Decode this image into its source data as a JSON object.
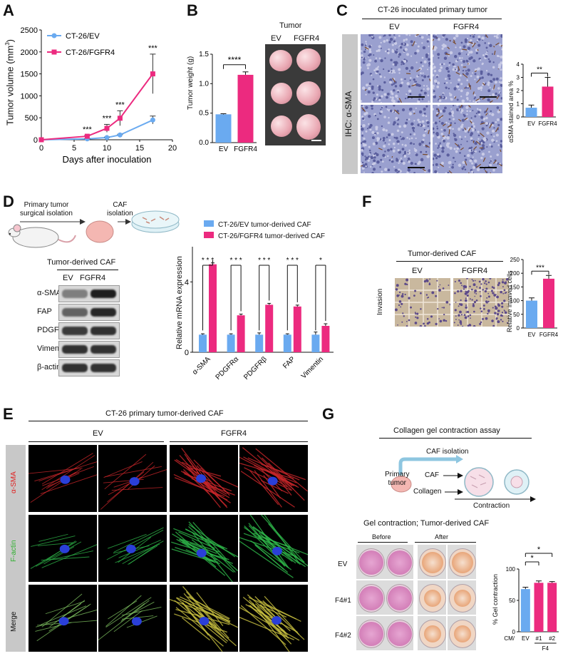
{
  "panels": {
    "A": {
      "label": "A",
      "ylabel": "Tumor volume (mm",
      "ylabel_sup": "3",
      "ylabel_close": ")",
      "xlabel": "Days after inoculation",
      "legend": [
        "CT-26/EV",
        "CT-26/FGFR4"
      ],
      "sig": [
        "***",
        "***",
        "***",
        "***"
      ]
    },
    "B": {
      "label": "B",
      "ylabel": "Tumor weight (g)",
      "categories": [
        "EV",
        "FGFR4"
      ],
      "sig": "****",
      "photo_title": "Tumor",
      "photo_cols": [
        "EV",
        "FGFR4"
      ]
    },
    "C": {
      "label": "C",
      "title": "CT-26 inoculated primary tumor",
      "cols": [
        "EV",
        "FGFR4"
      ],
      "side_label": "IHC: α-SMA",
      "bar_ylabel": "αSMA stained area %",
      "categories": [
        "EV",
        "FGFR4"
      ],
      "sig": "**"
    },
    "D": {
      "label": "D",
      "scheme_step1": [
        "Primary tumor",
        "surgical isolation"
      ],
      "scheme_step2": [
        "CAF",
        "isolation"
      ],
      "blot_title": "Tumor-derived CAF",
      "blot_cols": [
        "EV",
        "FGFR4"
      ],
      "blot_rows": [
        "α-SMA",
        "FAP",
        "PDGFRα",
        "Vimentin",
        "β-actin"
      ],
      "legend": [
        "CT-26/EV tumor-derived CAF",
        "CT-26/FGFR4 tumor-derived CAF"
      ],
      "bar_ylabel": "Relative mRNA expression",
      "categories": [
        "α-SMA",
        "PDGFRα",
        "PDGFRβ",
        "FAP",
        "Vimentin"
      ],
      "sig": [
        "* * *",
        "* * *",
        "* * *",
        "* * *",
        "*"
      ]
    },
    "E": {
      "label": "E",
      "title": "CT-26 primary tumor-derived CAF",
      "groups": [
        "EV",
        "FGFR4"
      ],
      "rows": [
        "α-SMA",
        "F-actin",
        "Merge"
      ]
    },
    "F": {
      "label": "F",
      "title": "Tumor-derived CAF",
      "cols": [
        "EV",
        "FGFR4"
      ],
      "side_label": "Invasion",
      "bar_ylabel": "Relative invaved cells",
      "categories": [
        "EV",
        "FGFR4"
      ],
      "sig": "***"
    },
    "G": {
      "label": "G",
      "title": "Collagen gel contraction assay",
      "scheme_caf": "CAF isolation",
      "scheme_primary": [
        "Primary",
        "tumor"
      ],
      "scheme_caf2": "CAF",
      "scheme_collagen": "Collagen",
      "scheme_contraction": "Contraction",
      "photo_title": "Gel contraction; Tumor-derived CAF",
      "photo_cols": [
        "Before",
        "After"
      ],
      "photo_rows": [
        "EV",
        "F4#1",
        "F4#2"
      ],
      "bar_ylabel": "% Gel contraction",
      "cm_label": "CM/",
      "categories": [
        "EV",
        "#1",
        "#2"
      ],
      "group_label": "F4",
      "sig": [
        "*",
        "*"
      ]
    }
  },
  "colors": {
    "ev": "#6aaaf0",
    "fgfr4": "#ec2a7f"
  },
  "chart_data": [
    {
      "id": "A",
      "type": "line",
      "xlabel": "Days after inoculation",
      "ylabel": "Tumor volume (mm3)",
      "xlim": [
        0,
        20
      ],
      "ylim": [
        0,
        2500
      ],
      "xticks": [
        0,
        5,
        10,
        15,
        20
      ],
      "yticks": [
        0,
        500,
        1000,
        1500,
        2000,
        2500
      ],
      "series": [
        {
          "name": "CT-26/EV",
          "x": [
            0,
            7,
            10,
            12,
            17
          ],
          "values": [
            0,
            20,
            50,
            110,
            450
          ],
          "err": [
            0,
            5,
            10,
            15,
            90
          ]
        },
        {
          "name": "CT-26/FGFR4",
          "x": [
            0,
            7,
            10,
            12,
            17
          ],
          "values": [
            0,
            80,
            260,
            490,
            1500
          ],
          "err": [
            0,
            20,
            90,
            170,
            450
          ]
        }
      ]
    },
    {
      "id": "B",
      "type": "bar",
      "categories": [
        "EV",
        "FGFR4"
      ],
      "values": [
        0.48,
        1.15
      ],
      "err": [
        0.01,
        0.05
      ],
      "ylim": [
        0,
        1.5
      ],
      "yticks": [
        0.0,
        0.5,
        1.0,
        1.5
      ]
    },
    {
      "id": "C",
      "type": "bar",
      "categories": [
        "EV",
        "FGFR4"
      ],
      "values": [
        0.7,
        2.3
      ],
      "err": [
        0.2,
        0.7
      ],
      "ylim": [
        0,
        4
      ],
      "yticks": [
        0,
        1,
        2,
        3,
        4
      ]
    },
    {
      "id": "D",
      "type": "bar",
      "categories": [
        "α-SMA",
        "PDGFRα",
        "PDGFRβ",
        "FAP",
        "Vimentin"
      ],
      "ylim": [
        0,
        6
      ],
      "yticks": [
        0,
        4
      ],
      "series": [
        {
          "name": "CT-26/EV tumor-derived CAF",
          "values": [
            1,
            1,
            1,
            1,
            1
          ],
          "err": [
            0.05,
            0.05,
            0.1,
            0.05,
            0.15
          ]
        },
        {
          "name": "CT-26/FGFR4 tumor-derived CAF",
          "values": [
            5.0,
            2.1,
            2.7,
            2.6,
            1.5
          ],
          "err": [
            0.08,
            0.07,
            0.08,
            0.08,
            0.12
          ]
        }
      ]
    },
    {
      "id": "F",
      "type": "bar",
      "categories": [
        "EV",
        "FGFR4"
      ],
      "values": [
        100,
        180
      ],
      "err": [
        10,
        12
      ],
      "ylim": [
        0,
        250
      ],
      "yticks": [
        0,
        50,
        100,
        150,
        200,
        250
      ]
    },
    {
      "id": "G",
      "type": "bar",
      "categories": [
        "EV",
        "#1",
        "#2"
      ],
      "values": [
        68,
        78,
        78
      ],
      "err": [
        3,
        3,
        2
      ],
      "ylim": [
        0,
        100
      ],
      "yticks": [
        0,
        50,
        100
      ]
    }
  ]
}
